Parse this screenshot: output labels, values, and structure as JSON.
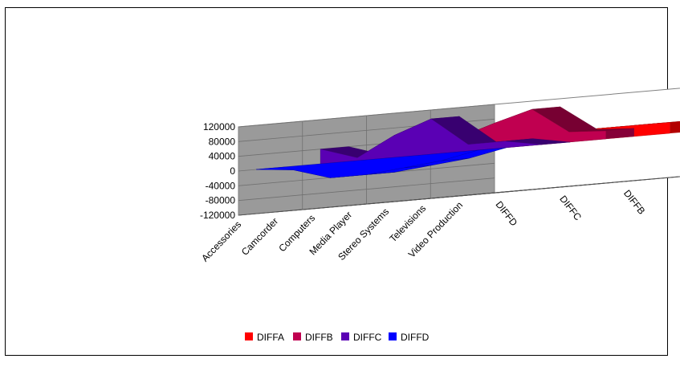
{
  "chart_data": {
    "type": "area",
    "subtype": "3d-area",
    "title": "",
    "xlabel": "",
    "ylabel": "",
    "categories": [
      "Accessories",
      "Camcorder",
      "Computers",
      "Media Player",
      "Stereo Systems",
      "Televisions",
      "Video Production"
    ],
    "ylim": [
      -120000,
      120000
    ],
    "y_ticks": [
      120000,
      80000,
      40000,
      0,
      -40000,
      -80000,
      -120000
    ],
    "grid": true,
    "legend_position": "bottom",
    "series": [
      {
        "name": "DIFFA",
        "color": "#ff0000",
        "values": [
          32000,
          30000,
          28000,
          30000,
          30000,
          30000,
          30000
        ]
      },
      {
        "name": "DIFFB",
        "color": "#c00050",
        "values": [
          30000,
          34000,
          38000,
          70000,
          98000,
          28000,
          22000
        ]
      },
      {
        "name": "DIFFC",
        "color": "#5a00b4",
        "values": [
          40000,
          8000,
          60000,
          96000,
          18000,
          18000,
          0
        ]
      },
      {
        "name": "DIFFD",
        "color": "#0000ff",
        "values": [
          0,
          -10000,
          -40000,
          -40000,
          -30000,
          -20000,
          0
        ]
      }
    ]
  }
}
